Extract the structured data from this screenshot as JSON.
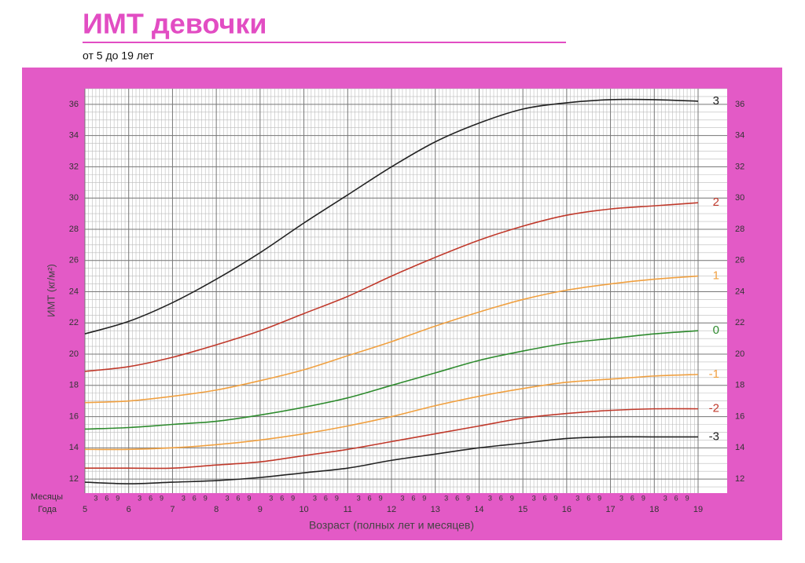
{
  "chart_data": {
    "type": "line",
    "title": "ИМТ девочки",
    "subtitle": "от 5 до 19 лет",
    "x_label": "Возраст (полных лет и месяцев)",
    "y_label": "ИМТ (кг/м²)",
    "months_row_label": "Месяцы",
    "years_row_label": "Года",
    "month_ticks": [
      3,
      6,
      9
    ],
    "x": [
      5,
      6,
      7,
      8,
      9,
      10,
      11,
      12,
      13,
      14,
      15,
      16,
      17,
      18,
      19
    ],
    "xlim": [
      5,
      19
    ],
    "xticks": [
      5,
      6,
      7,
      8,
      9,
      10,
      11,
      12,
      13,
      14,
      15,
      16,
      17,
      18,
      19
    ],
    "ylim": [
      11.1,
      37
    ],
    "yticks": [
      12,
      14,
      16,
      18,
      20,
      22,
      24,
      26,
      28,
      30,
      32,
      34,
      36
    ],
    "grid": true,
    "series": [
      {
        "name": "3",
        "color": "#222222",
        "values": [
          21.3,
          22.1,
          23.3,
          24.8,
          26.5,
          28.4,
          30.2,
          32.0,
          33.6,
          34.8,
          35.7,
          36.1,
          36.3,
          36.3,
          36.2
        ]
      },
      {
        "name": "2",
        "color": "#c0392b",
        "values": [
          18.9,
          19.2,
          19.8,
          20.6,
          21.5,
          22.6,
          23.7,
          25.0,
          26.2,
          27.3,
          28.2,
          28.9,
          29.3,
          29.5,
          29.7
        ]
      },
      {
        "name": "1",
        "color": "#f0a040",
        "values": [
          16.9,
          17.0,
          17.3,
          17.7,
          18.3,
          19.0,
          19.9,
          20.8,
          21.8,
          22.7,
          23.5,
          24.1,
          24.5,
          24.8,
          25.0
        ]
      },
      {
        "name": "0",
        "color": "#2e8b2e",
        "values": [
          15.2,
          15.3,
          15.5,
          15.7,
          16.1,
          16.6,
          17.2,
          18.0,
          18.8,
          19.6,
          20.2,
          20.7,
          21.0,
          21.3,
          21.5
        ]
      },
      {
        "name": "-1",
        "color": "#f0a040",
        "values": [
          13.9,
          13.9,
          14.0,
          14.2,
          14.5,
          14.9,
          15.4,
          16.0,
          16.7,
          17.3,
          17.8,
          18.2,
          18.4,
          18.6,
          18.7
        ]
      },
      {
        "name": "-2",
        "color": "#c0392b",
        "values": [
          12.7,
          12.7,
          12.7,
          12.9,
          13.1,
          13.5,
          13.9,
          14.4,
          14.9,
          15.4,
          15.9,
          16.2,
          16.4,
          16.5,
          16.5
        ]
      },
      {
        "name": "-3",
        "color": "#222222",
        "values": [
          11.8,
          11.7,
          11.8,
          11.9,
          12.1,
          12.4,
          12.7,
          13.2,
          13.6,
          14.0,
          14.3,
          14.6,
          14.7,
          14.7,
          14.7
        ]
      }
    ]
  }
}
